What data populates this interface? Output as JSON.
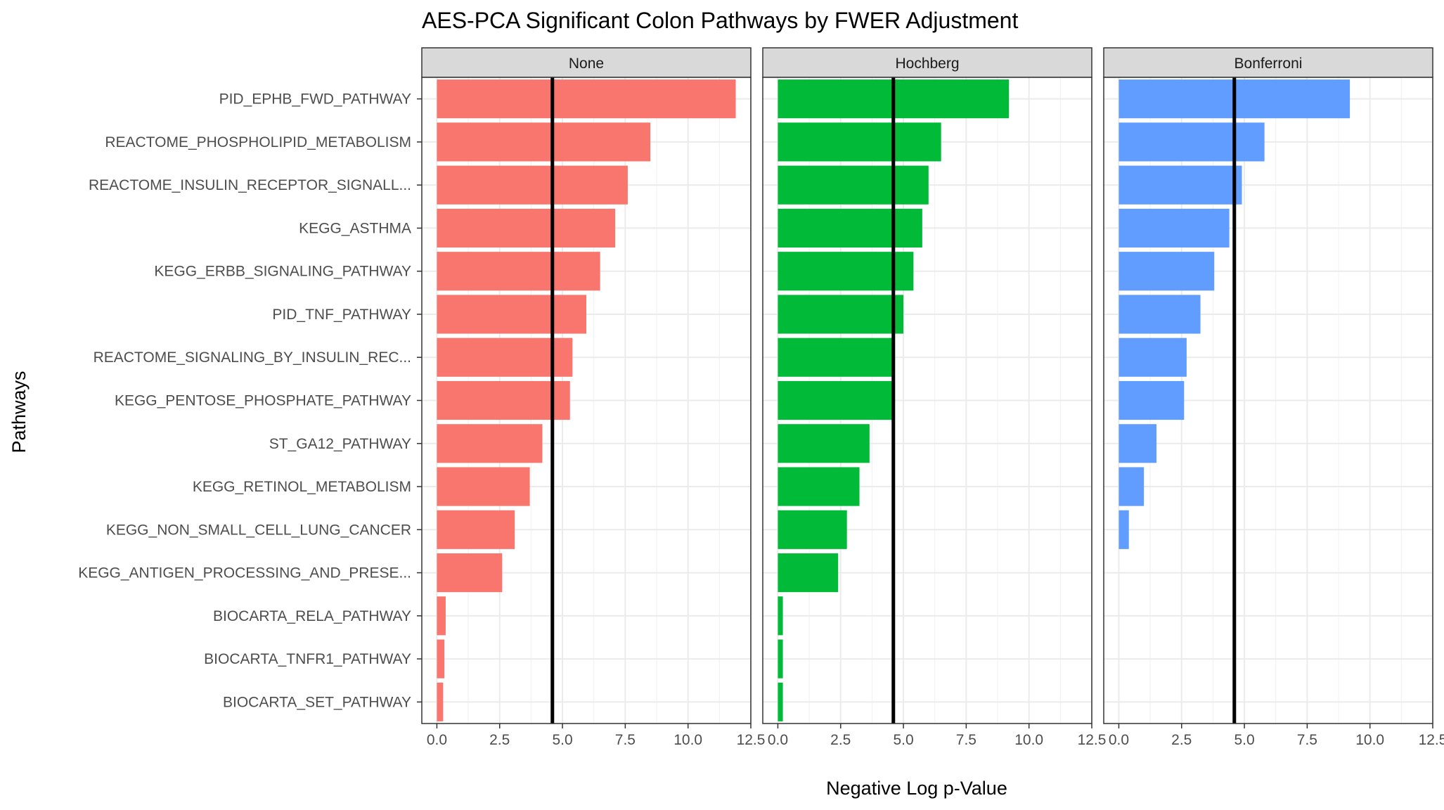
{
  "chart_data": {
    "type": "bar",
    "orientation": "horizontal",
    "title": "AES-PCA Significant Colon Pathways by FWER Adjustment",
    "xlabel": "Negative Log p-Value",
    "ylabel": "Pathways",
    "xlim": [
      -0.6,
      12.5
    ],
    "xticks": [
      0,
      2.5,
      5,
      7.5,
      10,
      12.5
    ],
    "xtick_labels": [
      "0.0",
      "2.5",
      "5.0",
      "7.5",
      "10.0",
      "12.5"
    ],
    "grid": true,
    "reference_line": 4.6,
    "categories": [
      "PID_EPHB_FWD_PATHWAY",
      "REACTOME_PHOSPHOLIPID_METABOLISM",
      "REACTOME_INSULIN_RECEPTOR_SIGNALL...",
      "KEGG_ASTHMA",
      "KEGG_ERBB_SIGNALING_PATHWAY",
      "PID_TNF_PATHWAY",
      "REACTOME_SIGNALING_BY_INSULIN_REC...",
      "KEGG_PENTOSE_PHOSPHATE_PATHWAY",
      "ST_GA12_PATHWAY",
      "KEGG_RETINOL_METABOLISM",
      "KEGG_NON_SMALL_CELL_LUNG_CANCER",
      "KEGG_ANTIGEN_PROCESSING_AND_PRESE...",
      "BIOCARTA_RELA_PATHWAY",
      "BIOCARTA_TNFR1_PATHWAY",
      "BIOCARTA_SET_PATHWAY"
    ],
    "panels": [
      {
        "name": "None",
        "color": "#F8766D",
        "values": [
          11.9,
          8.5,
          7.6,
          7.1,
          6.5,
          5.95,
          5.4,
          5.3,
          4.2,
          3.7,
          3.1,
          2.6,
          0.35,
          0.3,
          0.25
        ]
      },
      {
        "name": "Hochberg",
        "color": "#00BA38",
        "values": [
          9.2,
          6.5,
          6.0,
          5.75,
          5.4,
          5.0,
          4.65,
          4.65,
          3.65,
          3.25,
          2.75,
          2.4,
          0.2,
          0.2,
          0.2
        ]
      },
      {
        "name": "Bonferroni",
        "color": "#619CFF",
        "values": [
          9.2,
          5.8,
          4.9,
          4.4,
          3.8,
          3.25,
          2.7,
          2.6,
          1.5,
          1.0,
          0.4,
          null,
          null,
          null,
          null
        ]
      }
    ]
  }
}
